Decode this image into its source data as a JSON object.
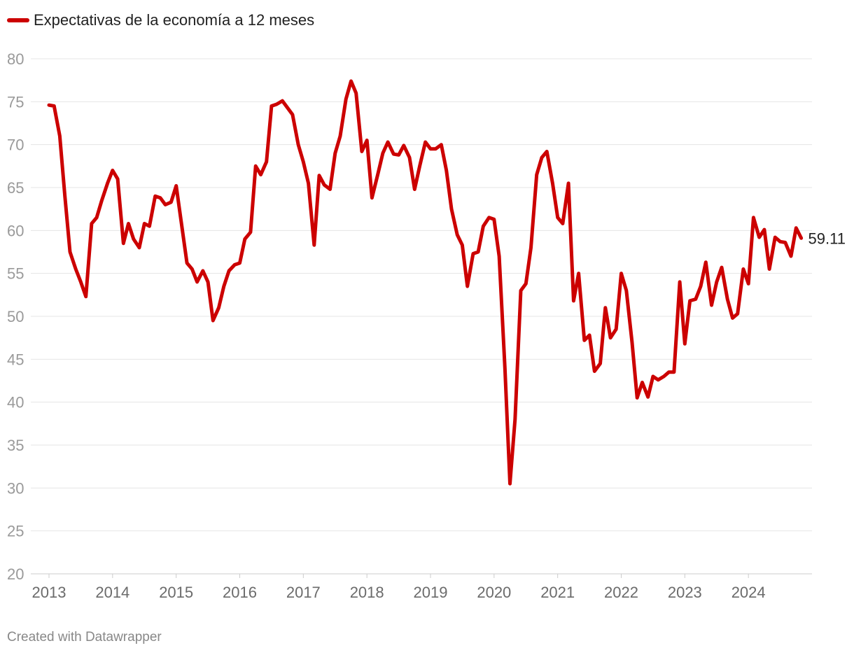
{
  "legend": {
    "label": "Expectativas de la economía a 12 meses"
  },
  "credit": "Created with Datawrapper",
  "colors": {
    "series": "#cc0000",
    "grid": "#e4e4e4",
    "tick": "#9a9a9a",
    "end_label": "#222222"
  },
  "chart_data": {
    "type": "line",
    "title": "",
    "xlabel": "",
    "ylabel": "",
    "ylim": [
      20,
      80
    ],
    "xlim": [
      2013.0,
      2025.0
    ],
    "y_ticks": [
      20,
      25,
      30,
      35,
      40,
      45,
      50,
      55,
      60,
      65,
      70,
      75,
      80
    ],
    "x_ticks": [
      "2013",
      "2014",
      "2015",
      "2016",
      "2017",
      "2018",
      "2019",
      "2020",
      "2021",
      "2022",
      "2023",
      "2024"
    ],
    "grid": true,
    "legend_position": "top-left",
    "end_label": "59.11",
    "series": [
      {
        "name": "Expectativas de la economía a 12 meses",
        "points": [
          [
            2013.0,
            74.6
          ],
          [
            2013.08,
            74.5
          ],
          [
            2013.17,
            71.0
          ],
          [
            2013.25,
            64.0
          ],
          [
            2013.33,
            57.5
          ],
          [
            2013.42,
            55.5
          ],
          [
            2013.5,
            54.0
          ],
          [
            2013.58,
            52.3
          ],
          [
            2013.67,
            60.8
          ],
          [
            2013.75,
            61.5
          ],
          [
            2013.83,
            63.5
          ],
          [
            2013.92,
            65.5
          ],
          [
            2014.0,
            67.0
          ],
          [
            2014.08,
            66.0
          ],
          [
            2014.17,
            58.5
          ],
          [
            2014.25,
            60.8
          ],
          [
            2014.33,
            59.0
          ],
          [
            2014.42,
            58.0
          ],
          [
            2014.5,
            60.8
          ],
          [
            2014.58,
            60.5
          ],
          [
            2014.67,
            64.0
          ],
          [
            2014.75,
            63.8
          ],
          [
            2014.83,
            63.0
          ],
          [
            2014.92,
            63.3
          ],
          [
            2015.0,
            65.2
          ],
          [
            2015.08,
            61.0
          ],
          [
            2015.17,
            56.2
          ],
          [
            2015.25,
            55.5
          ],
          [
            2015.33,
            54.0
          ],
          [
            2015.42,
            55.3
          ],
          [
            2015.5,
            54.0
          ],
          [
            2015.58,
            49.5
          ],
          [
            2015.67,
            51.0
          ],
          [
            2015.75,
            53.5
          ],
          [
            2015.83,
            55.3
          ],
          [
            2015.92,
            56.0
          ],
          [
            2016.0,
            56.2
          ],
          [
            2016.08,
            59.0
          ],
          [
            2016.17,
            59.8
          ],
          [
            2016.25,
            67.5
          ],
          [
            2016.33,
            66.5
          ],
          [
            2016.42,
            68.0
          ],
          [
            2016.5,
            74.5
          ],
          [
            2016.58,
            74.7
          ],
          [
            2016.67,
            75.1
          ],
          [
            2016.75,
            74.3
          ],
          [
            2016.83,
            73.5
          ],
          [
            2016.92,
            70.0
          ],
          [
            2017.0,
            68.0
          ],
          [
            2017.08,
            65.5
          ],
          [
            2017.17,
            58.3
          ],
          [
            2017.25,
            66.4
          ],
          [
            2017.33,
            65.3
          ],
          [
            2017.42,
            64.8
          ],
          [
            2017.5,
            69.0
          ],
          [
            2017.58,
            71.0
          ],
          [
            2017.67,
            75.3
          ],
          [
            2017.75,
            77.4
          ],
          [
            2017.83,
            76.0
          ],
          [
            2017.92,
            69.2
          ],
          [
            2018.0,
            70.5
          ],
          [
            2018.08,
            63.8
          ],
          [
            2018.17,
            66.5
          ],
          [
            2018.25,
            69.0
          ],
          [
            2018.33,
            70.3
          ],
          [
            2018.42,
            68.9
          ],
          [
            2018.5,
            68.8
          ],
          [
            2018.58,
            69.9
          ],
          [
            2018.67,
            68.5
          ],
          [
            2018.75,
            64.8
          ],
          [
            2018.83,
            67.5
          ],
          [
            2018.92,
            70.3
          ],
          [
            2019.0,
            69.5
          ],
          [
            2019.08,
            69.5
          ],
          [
            2019.17,
            70.0
          ],
          [
            2019.25,
            67.0
          ],
          [
            2019.33,
            62.5
          ],
          [
            2019.42,
            59.5
          ],
          [
            2019.5,
            58.3
          ],
          [
            2019.58,
            53.5
          ],
          [
            2019.67,
            57.3
          ],
          [
            2019.75,
            57.5
          ],
          [
            2019.83,
            60.5
          ],
          [
            2019.92,
            61.5
          ],
          [
            2020.0,
            61.3
          ],
          [
            2020.08,
            57.0
          ],
          [
            2020.17,
            44.0
          ],
          [
            2020.25,
            30.5
          ],
          [
            2020.33,
            38.0
          ],
          [
            2020.42,
            53.0
          ],
          [
            2020.5,
            53.8
          ],
          [
            2020.58,
            58.0
          ],
          [
            2020.67,
            66.5
          ],
          [
            2020.75,
            68.5
          ],
          [
            2020.83,
            69.2
          ],
          [
            2020.92,
            65.5
          ],
          [
            2021.0,
            61.5
          ],
          [
            2021.08,
            60.8
          ],
          [
            2021.17,
            65.5
          ],
          [
            2021.25,
            51.8
          ],
          [
            2021.33,
            55.0
          ],
          [
            2021.42,
            47.2
          ],
          [
            2021.5,
            47.8
          ],
          [
            2021.58,
            43.6
          ],
          [
            2021.67,
            44.5
          ],
          [
            2021.75,
            51.0
          ],
          [
            2021.83,
            47.5
          ],
          [
            2021.92,
            48.5
          ],
          [
            2022.0,
            55.0
          ],
          [
            2022.08,
            53.0
          ],
          [
            2022.17,
            47.0
          ],
          [
            2022.25,
            40.5
          ],
          [
            2022.33,
            42.3
          ],
          [
            2022.42,
            40.6
          ],
          [
            2022.5,
            43.0
          ],
          [
            2022.58,
            42.6
          ],
          [
            2022.67,
            43.0
          ],
          [
            2022.75,
            43.5
          ],
          [
            2022.83,
            43.5
          ],
          [
            2022.92,
            54.0
          ],
          [
            2023.0,
            46.8
          ],
          [
            2023.08,
            51.8
          ],
          [
            2023.17,
            52.0
          ],
          [
            2023.25,
            53.5
          ],
          [
            2023.33,
            56.3
          ],
          [
            2023.42,
            51.3
          ],
          [
            2023.5,
            54.0
          ],
          [
            2023.58,
            55.7
          ],
          [
            2023.67,
            52.0
          ],
          [
            2023.75,
            49.8
          ],
          [
            2023.83,
            50.3
          ],
          [
            2023.92,
            55.5
          ],
          [
            2024.0,
            53.8
          ],
          [
            2024.08,
            61.5
          ],
          [
            2024.17,
            59.2
          ],
          [
            2024.25,
            60.1
          ],
          [
            2024.33,
            55.5
          ],
          [
            2024.42,
            59.2
          ],
          [
            2024.5,
            58.7
          ],
          [
            2024.58,
            58.6
          ],
          [
            2024.67,
            57.0
          ],
          [
            2024.75,
            60.3
          ],
          [
            2024.83,
            59.11
          ]
        ]
      }
    ]
  }
}
